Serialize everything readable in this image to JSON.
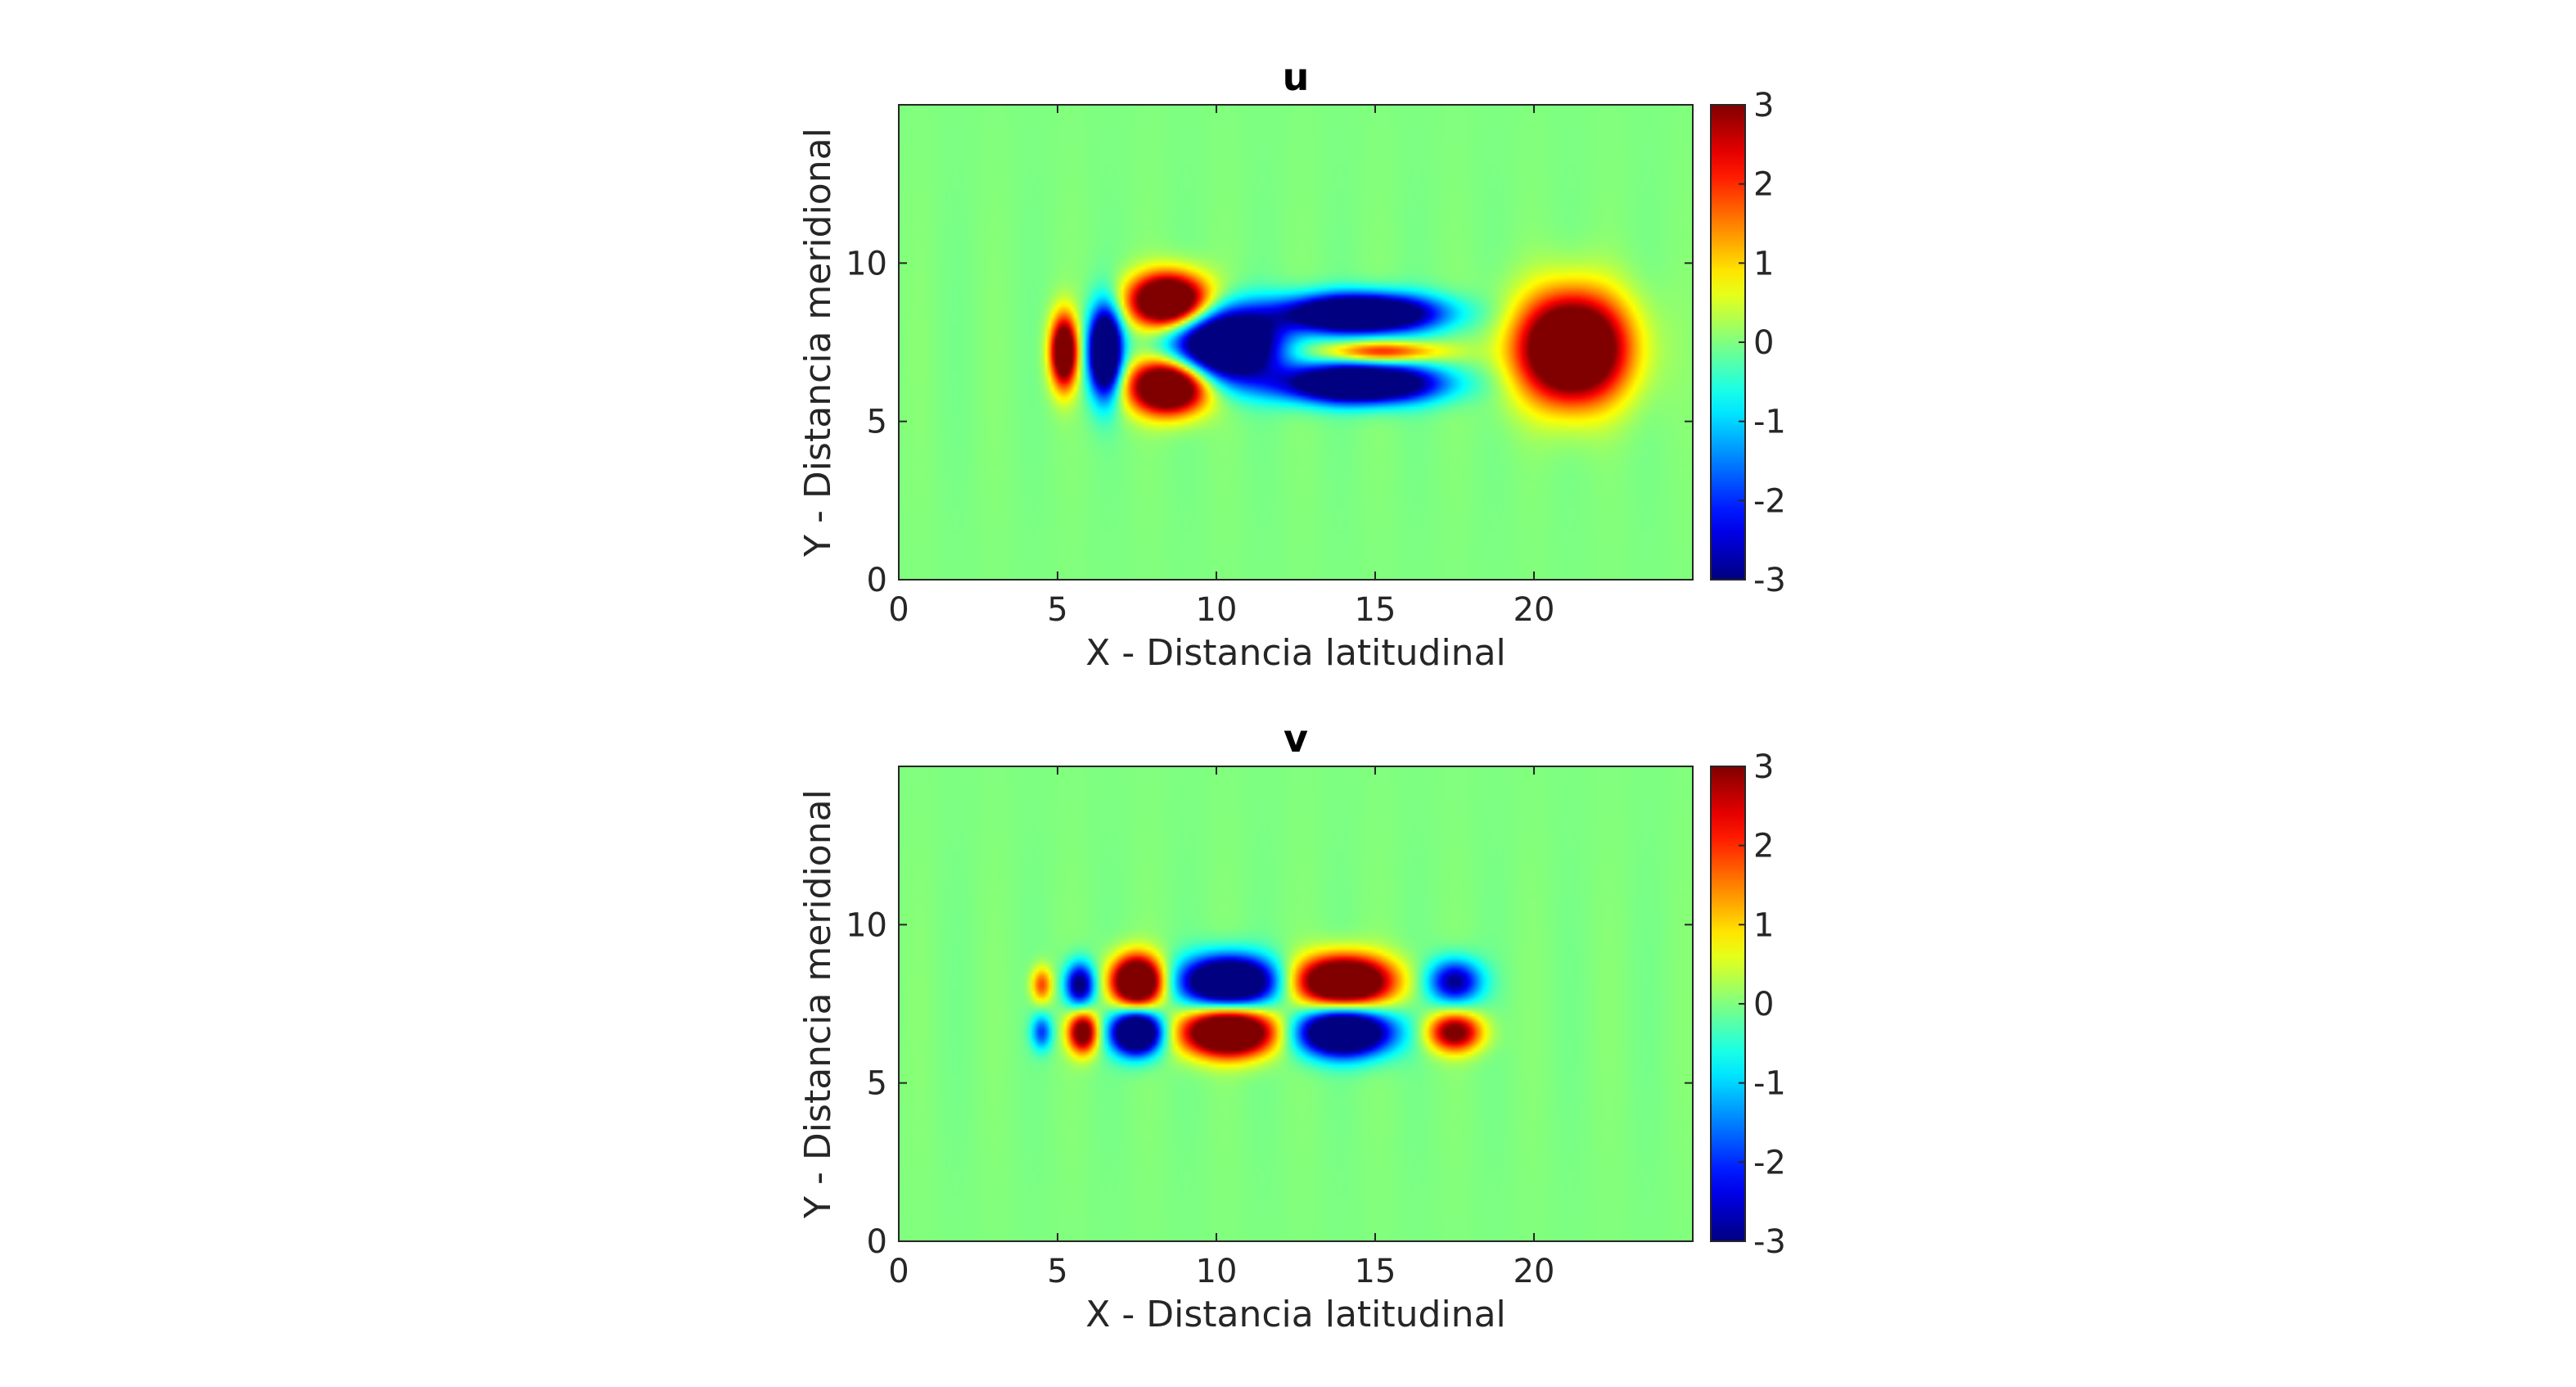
{
  "chart_data": [
    {
      "type": "heatmap",
      "title": "u",
      "xlabel": "X - Distancia latitudinal",
      "ylabel": "Y - Distancia meridional",
      "xlim": [
        0,
        25
      ],
      "ylim": [
        0,
        15
      ],
      "xticks": [
        0,
        5,
        10,
        15,
        20
      ],
      "yticks": [
        0,
        5,
        10
      ],
      "colorbar": {
        "min": -3,
        "max": 3,
        "ticks": [
          3,
          2,
          1,
          0,
          -1,
          -2,
          -3
        ],
        "colormap": "jet"
      },
      "grid": false,
      "blobs": [
        {
          "x": 5.2,
          "y": 7.2,
          "rx": 0.45,
          "ry": 1.2,
          "value": 2.5
        },
        {
          "x": 6.5,
          "y": 7.2,
          "rx": 0.55,
          "ry": 1.5,
          "value": -3
        },
        {
          "x": 8.5,
          "y": 8.8,
          "rx": 1.3,
          "ry": 0.9,
          "value": 3
        },
        {
          "x": 8.5,
          "y": 6.1,
          "rx": 1.3,
          "ry": 0.9,
          "value": 3
        },
        {
          "x": 10.3,
          "y": 7.4,
          "rx": 1.8,
          "ry": 1.2,
          "value": -3
        },
        {
          "x": 14.5,
          "y": 8.4,
          "rx": 2.6,
          "ry": 0.65,
          "value": -3
        },
        {
          "x": 14.5,
          "y": 6.2,
          "rx": 2.6,
          "ry": 0.65,
          "value": -3
        },
        {
          "x": 15.2,
          "y": 7.2,
          "rx": 2.0,
          "ry": 0.35,
          "value": 1.2
        },
        {
          "x": 21.2,
          "y": 7.3,
          "rx": 1.8,
          "ry": 1.8,
          "value": 3
        }
      ]
    },
    {
      "type": "heatmap",
      "title": "v",
      "xlabel": "X - Distancia latitudinal",
      "ylabel": "Y - Distancia meridional",
      "xlim": [
        0,
        25
      ],
      "ylim": [
        0,
        15
      ],
      "xticks": [
        0,
        5,
        10,
        15,
        20
      ],
      "yticks": [
        0,
        5,
        10
      ],
      "colorbar": {
        "min": -3,
        "max": 3,
        "ticks": [
          3,
          2,
          1,
          0,
          -1,
          -2,
          -3
        ],
        "colormap": "jet"
      },
      "grid": false,
      "blobs": [
        {
          "x": 4.5,
          "y": 8.1,
          "rx": 0.35,
          "ry": 0.6,
          "value": 1.0
        },
        {
          "x": 5.7,
          "y": 8.1,
          "rx": 0.5,
          "ry": 0.75,
          "value": -1.8
        },
        {
          "x": 4.5,
          "y": 6.6,
          "rx": 0.35,
          "ry": 0.6,
          "value": -1.0
        },
        {
          "x": 5.8,
          "y": 6.6,
          "rx": 0.5,
          "ry": 0.7,
          "value": 2.0
        },
        {
          "x": 7.5,
          "y": 8.2,
          "rx": 0.85,
          "ry": 0.85,
          "value": 3
        },
        {
          "x": 7.5,
          "y": 6.6,
          "rx": 0.85,
          "ry": 0.75,
          "value": -3
        },
        {
          "x": 10.4,
          "y": 8.2,
          "rx": 1.6,
          "ry": 0.85,
          "value": -3
        },
        {
          "x": 10.4,
          "y": 6.6,
          "rx": 1.6,
          "ry": 0.8,
          "value": 3
        },
        {
          "x": 14.0,
          "y": 8.2,
          "rx": 1.6,
          "ry": 0.85,
          "value": 3
        },
        {
          "x": 14.0,
          "y": 6.6,
          "rx": 1.6,
          "ry": 0.8,
          "value": -3
        },
        {
          "x": 17.5,
          "y": 8.2,
          "rx": 0.9,
          "ry": 0.75,
          "value": -1.6
        },
        {
          "x": 17.5,
          "y": 6.6,
          "rx": 0.9,
          "ry": 0.65,
          "value": 1.8
        }
      ]
    }
  ]
}
